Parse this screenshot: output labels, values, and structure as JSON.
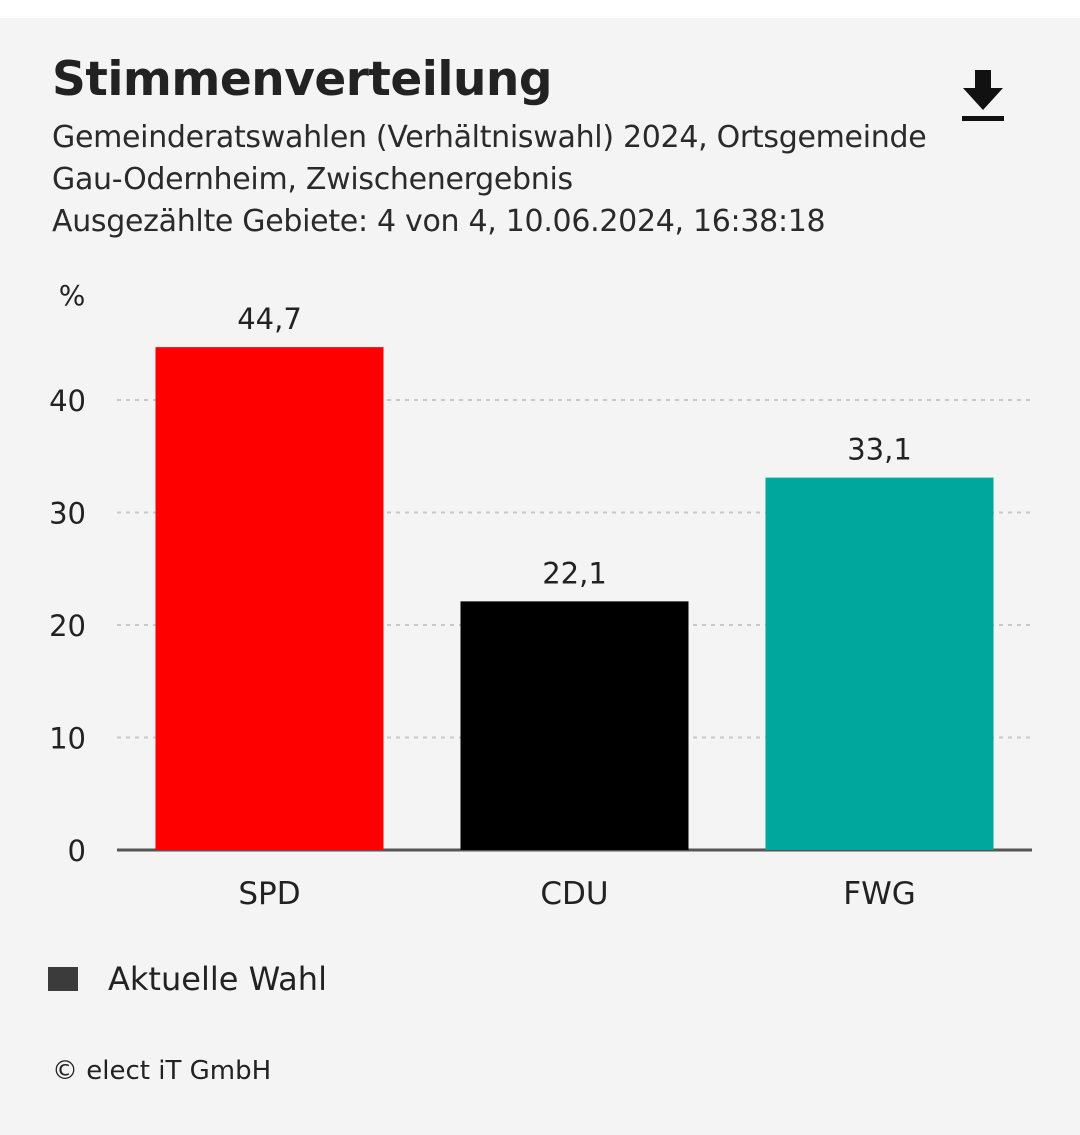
{
  "header": {
    "title": "Stimmenverteilung",
    "subtitle_lines": [
      "Gemeinderatswahlen (Verhältniswahl) 2024, Ortsgemeinde",
      "Gau-Odernheim, Zwischenergebnis",
      "Ausgezählte Gebiete: 4 von 4, 10.06.2024, 16:38:18"
    ],
    "download_icon": "download-icon"
  },
  "chart_data": {
    "type": "bar",
    "categories": [
      "SPD",
      "CDU",
      "FWG"
    ],
    "values": [
      44.7,
      22.1,
      33.1
    ],
    "value_labels": [
      "44,7",
      "22,1",
      "33,1"
    ],
    "colors": [
      "#ff0000",
      "#000000",
      "#00a79d"
    ],
    "ylabel": "%",
    "yticks": [
      0,
      10,
      20,
      30,
      40
    ],
    "ylim": [
      0,
      47
    ],
    "grid": true,
    "legend": [
      {
        "label": "Aktuelle Wahl",
        "color": "#3b3b3b"
      }
    ],
    "legend_position": "bottom-left"
  },
  "footer": {
    "copyright": "© elect iT GmbH"
  }
}
